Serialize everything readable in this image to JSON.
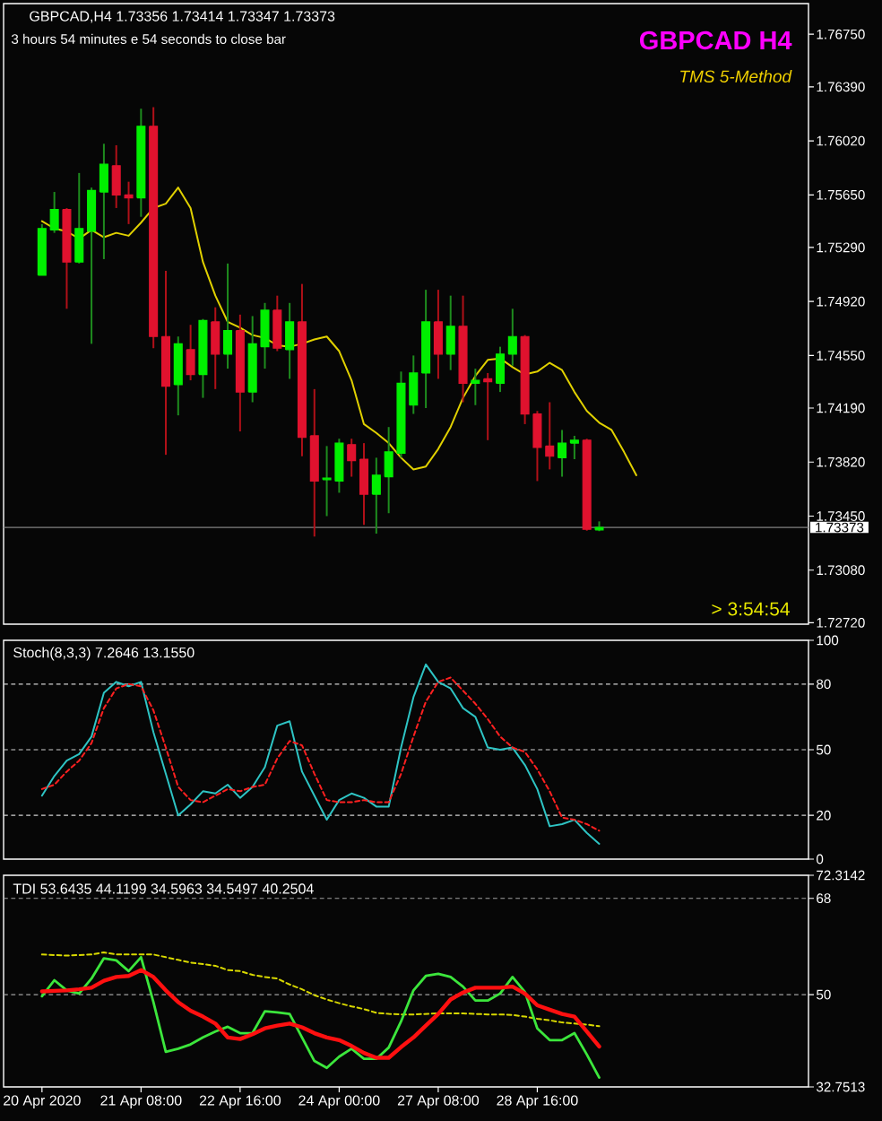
{
  "chart_data": [
    {
      "type": "candlestick",
      "title": "GBPCAD,H4 1.73356 1.73414 1.73347 1.73373",
      "subtitle": "3 hours 54 minutes e 54 seconds to close bar",
      "annotations": [
        "GBPCAD H4",
        "*TMS 5-Method*",
        "> 3:54:54"
      ],
      "categories": [
        null,
        null,
        null,
        null,
        null,
        null,
        null,
        null,
        null,
        null,
        null,
        null,
        null,
        null,
        null,
        null,
        null,
        null,
        null,
        null,
        null,
        null,
        null,
        null,
        null,
        null,
        null,
        null,
        null,
        null,
        null,
        null,
        null,
        null,
        null,
        null,
        null,
        null,
        null,
        null,
        null,
        null,
        null,
        null,
        null,
        null,
        null,
        null,
        null
      ],
      "ohlc": [
        [
          1.751,
          1.7545,
          1.751,
          1.7542
        ],
        [
          1.7541,
          1.7567,
          1.7539,
          1.7555
        ],
        [
          1.7555,
          1.7556,
          1.7487,
          1.7519
        ],
        [
          1.7519,
          1.758,
          1.7518,
          1.7542
        ],
        [
          1.754,
          1.757,
          1.7463,
          1.7568
        ],
        [
          1.7567,
          1.76,
          1.7521,
          1.7586
        ],
        [
          1.7585,
          1.7599,
          1.7556,
          1.7565
        ],
        [
          1.7565,
          1.7574,
          1.7545,
          1.7563
        ],
        [
          1.7563,
          1.7624,
          1.755,
          1.7612
        ],
        [
          1.7612,
          1.7625,
          1.746,
          1.7468
        ],
        [
          1.7468,
          1.7513,
          1.7387,
          1.7434
        ],
        [
          1.7435,
          1.7468,
          1.7414,
          1.7463
        ],
        [
          1.7459,
          1.7476,
          1.7438,
          1.7442
        ],
        [
          1.7442,
          1.748,
          1.7426,
          1.7479
        ],
        [
          1.7478,
          1.7488,
          1.7432,
          1.7456
        ],
        [
          1.7456,
          1.7518,
          1.7446,
          1.7472
        ],
        [
          1.7472,
          1.7483,
          1.7403,
          1.743
        ],
        [
          1.743,
          1.7482,
          1.7423,
          1.7463
        ],
        [
          1.7461,
          1.7491,
          1.7446,
          1.7486
        ],
        [
          1.7486,
          1.7496,
          1.7458,
          1.746
        ],
        [
          1.7459,
          1.7491,
          1.7439,
          1.7478
        ],
        [
          1.7478,
          1.7504,
          1.7386,
          1.7399
        ],
        [
          1.74,
          1.7432,
          1.7331,
          1.7369
        ],
        [
          1.737,
          1.7393,
          1.7345,
          1.7371
        ],
        [
          1.7369,
          1.7398,
          1.7361,
          1.7395
        ],
        [
          1.7394,
          1.7398,
          1.7372,
          1.7383
        ],
        [
          1.7384,
          1.7395,
          1.7339,
          1.736
        ],
        [
          1.736,
          1.7385,
          1.7333,
          1.7373
        ],
        [
          1.7372,
          1.7406,
          1.7347,
          1.7389
        ],
        [
          1.7388,
          1.7444,
          1.7385,
          1.7436
        ],
        [
          1.7421,
          1.7455,
          1.7415,
          1.7443
        ],
        [
          1.7443,
          1.75,
          1.7419,
          1.7478
        ],
        [
          1.7478,
          1.75,
          1.7439,
          1.7456
        ],
        [
          1.7456,
          1.7496,
          1.7445,
          1.7475
        ],
        [
          1.7475,
          1.7496,
          1.7423,
          1.7436
        ],
        [
          1.7436,
          1.7446,
          1.7421,
          1.7438
        ],
        [
          1.7439,
          1.7443,
          1.7397,
          1.7437
        ],
        [
          1.7436,
          1.7461,
          1.743,
          1.7456
        ],
        [
          1.7456,
          1.7487,
          1.7448,
          1.7468
        ],
        [
          1.7468,
          1.7469,
          1.7408,
          1.7415
        ],
        [
          1.7415,
          1.7417,
          1.7369,
          1.7392
        ],
        [
          1.7393,
          1.7423,
          1.7377,
          1.7386
        ],
        [
          1.7385,
          1.7404,
          1.7372,
          1.7395
        ],
        [
          1.7395,
          1.74,
          1.7384,
          1.7397
        ],
        [
          1.7397,
          1.7398,
          1.7335,
          1.7336
        ],
        [
          1.73356,
          1.73414,
          1.73347,
          1.73373
        ],
        null,
        null,
        null
      ],
      "series": [
        {
          "type": "line",
          "color": "#e0d000",
          "values": [
            1.7547,
            1.7542,
            1.754,
            1.7535,
            1.7541,
            1.7536,
            1.7539,
            1.7537,
            1.7546,
            1.7556,
            1.7559,
            1.757,
            1.7556,
            1.7519,
            1.7496,
            1.7478,
            1.7474,
            1.7469,
            1.7467,
            1.7462,
            1.7461,
            1.7463,
            1.7466,
            1.7468,
            1.7458,
            1.7438,
            1.7408,
            1.7402,
            1.7395,
            1.7385,
            1.7377,
            1.7379,
            1.7391,
            1.7406,
            1.7426,
            1.7441,
            1.7452,
            1.7453,
            1.7447,
            1.7442,
            1.7444,
            1.745,
            1.7445,
            1.743,
            1.7417,
            1.7409,
            1.7404,
            1.7389,
            1.7373
          ]
        }
      ],
      "ylim": [
        1.7271,
        1.7696
      ],
      "yticks": [
        {
          "value": 1.7272,
          "label": "1.72720"
        },
        {
          "value": 1.7308,
          "label": "1.73080"
        },
        {
          "value": 1.7345,
          "label": "1.73450"
        },
        {
          "value": 1.7382,
          "label": "1.73820"
        },
        {
          "value": 1.7419,
          "label": "1.74190"
        },
        {
          "value": 1.7455,
          "label": "1.74550"
        },
        {
          "value": 1.7492,
          "label": "1.74920"
        },
        {
          "value": 1.7529,
          "label": "1.75290"
        },
        {
          "value": 1.7565,
          "label": "1.75650"
        },
        {
          "value": 1.7602,
          "label": "1.76020"
        },
        {
          "value": 1.7639,
          "label": "1.76390"
        },
        {
          "value": 1.7675,
          "label": "1.76750"
        }
      ],
      "ref_lines": [
        {
          "axis": "y",
          "value": 1.73373,
          "label": "1.73373",
          "color": "#808080"
        }
      ],
      "tick_labels": "y"
    },
    {
      "type": "line",
      "title": "Stoch(8,3,3) 7.2646 13.1550",
      "categories": [
        null,
        null,
        null,
        null,
        null,
        null,
        null,
        null,
        null,
        null,
        null,
        null,
        null,
        null,
        null,
        null,
        null,
        null,
        null,
        null,
        null,
        null,
        null,
        null,
        null,
        null,
        null,
        null,
        null,
        null,
        null,
        null,
        null,
        null,
        null,
        null,
        null,
        null,
        null,
        null,
        null,
        null,
        null,
        null,
        null,
        null
      ],
      "series": [
        {
          "color": "#2ec4c4",
          "values": [
            29,
            38,
            45,
            48,
            56,
            76,
            81,
            79,
            81,
            58,
            39,
            20,
            25,
            31,
            30,
            34,
            28,
            33,
            42,
            61,
            63,
            40,
            29,
            18,
            27,
            30,
            28,
            24,
            24,
            51,
            74,
            89,
            81,
            78,
            69,
            65,
            51,
            50,
            51,
            43,
            32,
            15,
            16,
            18,
            12,
            7
          ]
        },
        {
          "color": "#ff2020",
          "line_style": "dashed",
          "values": [
            32,
            34,
            40,
            45,
            53,
            69,
            78,
            80,
            79,
            68,
            51,
            33,
            27,
            26,
            29,
            32,
            31,
            33,
            34,
            46,
            54,
            52,
            39,
            27,
            26,
            26,
            27,
            26,
            26,
            39,
            56,
            72,
            81,
            83,
            77,
            71,
            64,
            56,
            51,
            49,
            41,
            31,
            19,
            18,
            16,
            13
          ]
        }
      ],
      "ylim": [
        0,
        100
      ],
      "yticks": [
        0,
        20,
        50,
        80,
        100
      ],
      "ref_lines": [
        {
          "axis": "y",
          "value": 20,
          "color": "#d0d0d0",
          "line_style": "dashed"
        },
        {
          "axis": "y",
          "value": 50,
          "color": "#d0d0d0",
          "line_style": "dashed"
        },
        {
          "axis": "y",
          "value": 80,
          "color": "#d0d0d0",
          "line_style": "dashed"
        }
      ],
      "tick_labels": "y"
    },
    {
      "type": "line",
      "title": "TDI 53.6435 44.1199 34.5963 34.5497 40.2504",
      "categories": [
        "20 Apr 2020",
        null,
        null,
        null,
        null,
        null,
        null,
        null,
        "21 Apr 08:00",
        null,
        null,
        null,
        null,
        null,
        null,
        null,
        "22 Apr 16:00",
        null,
        null,
        null,
        null,
        null,
        null,
        null,
        "24 Apr 00:00",
        null,
        null,
        null,
        null,
        null,
        null,
        null,
        "27 Apr 08:00",
        null,
        null,
        null,
        null,
        null,
        null,
        null,
        "28 Apr 16:00",
        null,
        null,
        null,
        null,
        null
      ],
      "series": [
        {
          "color": "#d8d800",
          "line_style": "dashed",
          "values": [
            57.5,
            57.4,
            57.3,
            57.4,
            57.5,
            57.9,
            57.5,
            57.5,
            57.5,
            57.5,
            57.0,
            56.5,
            56.0,
            55.7,
            55.4,
            54.6,
            54.4,
            53.7,
            53.3,
            53.0,
            51.9,
            51.0,
            49.9,
            49.1,
            48.4,
            47.8,
            47.3,
            46.6,
            46.4,
            46.3,
            46.3,
            46.4,
            46.5,
            46.5,
            46.5,
            46.4,
            46.3,
            46.3,
            46.2,
            45.9,
            45.5,
            45.2,
            44.8,
            44.6,
            44.4,
            44.1
          ]
        },
        {
          "color": "#3ce63c",
          "values": [
            49.7,
            52.7,
            50.8,
            50.2,
            53.0,
            56.8,
            56.4,
            54.4,
            57.0,
            48.6,
            39.3,
            39.9,
            40.7,
            42.0,
            43.1,
            44.0,
            42.8,
            42.8,
            46.9,
            46.7,
            46.4,
            42.0,
            37.6,
            36.3,
            38.4,
            39.9,
            38.0,
            38.0,
            40.1,
            45.0,
            50.8,
            53.5,
            53.9,
            53.3,
            51.5,
            48.9,
            48.9,
            50.2,
            53.3,
            50.5,
            43.7,
            41.5,
            41.5,
            42.8,
            38.8,
            34.5
          ]
        },
        {
          "color": "#ff1010",
          "values": [
            50.6,
            50.7,
            50.8,
            51.0,
            51.3,
            52.6,
            53.3,
            53.5,
            54.6,
            53.3,
            50.8,
            48.6,
            47.0,
            45.9,
            44.6,
            42.0,
            41.7,
            42.6,
            43.7,
            44.2,
            44.6,
            43.9,
            42.8,
            42.0,
            41.5,
            40.4,
            39.1,
            38.2,
            38.2,
            40.2,
            42.0,
            44.2,
            46.4,
            49.1,
            50.4,
            51.3,
            51.3,
            51.3,
            51.5,
            50.2,
            48.0,
            47.2,
            46.4,
            45.9,
            43.1,
            40.3
          ]
        }
      ],
      "ylim": [
        32.7513,
        72.3142
      ],
      "yticks": [
        32.7513,
        50,
        68,
        72.3142
      ],
      "ref_lines": [
        {
          "axis": "y",
          "value": 50,
          "color": "#a0a0a0",
          "line_style": "dashed"
        },
        {
          "axis": "y",
          "value": 68,
          "color": "#a0a0a0",
          "line_style": "dashed"
        }
      ]
    }
  ]
}
